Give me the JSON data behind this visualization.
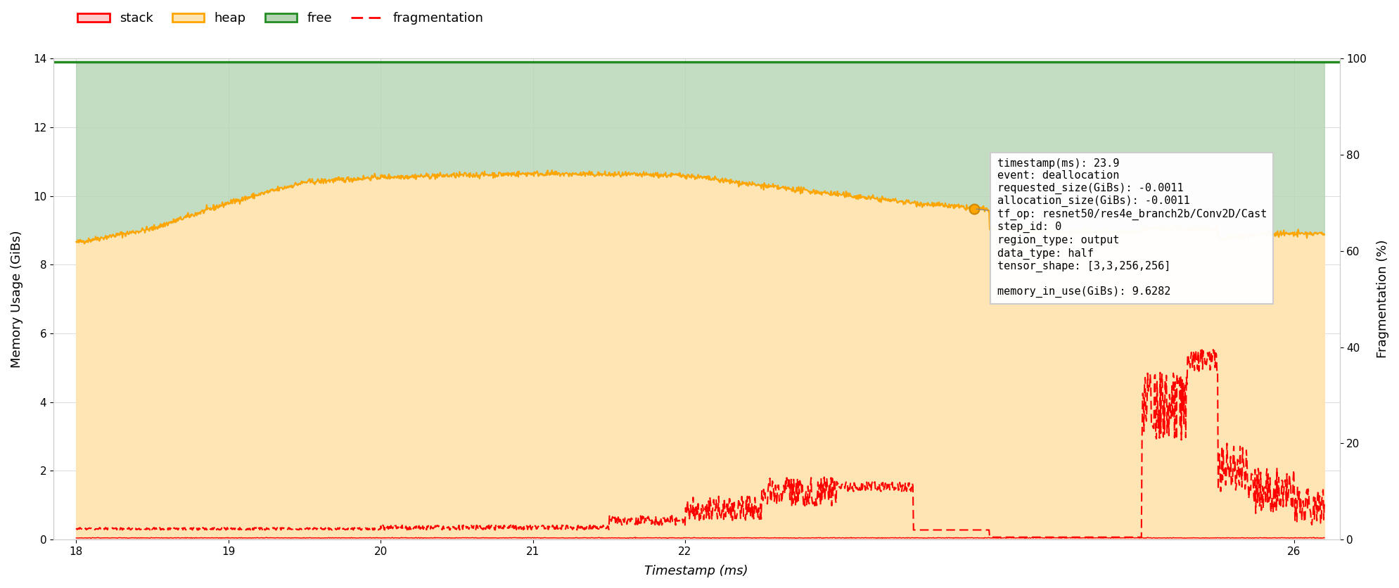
{
  "xlim": [
    17.85,
    26.3
  ],
  "ylim_left": [
    0,
    14
  ],
  "ylim_right": [
    0,
    100
  ],
  "xticks": [
    18,
    19,
    20,
    21,
    22,
    26
  ],
  "yticks_left": [
    0,
    2,
    4,
    6,
    8,
    10,
    12,
    14
  ],
  "yticks_right": [
    0,
    20,
    40,
    60,
    80,
    100
  ],
  "xlabel": "Timestamp (ms)",
  "ylabel_left": "Memory Usage (GiBs)",
  "ylabel_right": "Fragmentation (%)",
  "total_memory_gib": 13.9,
  "stack_color": "#ff0000",
  "stack_fill_color": "#ffcccc",
  "heap_color": "#ffa500",
  "heap_fill_color": "#ffe5b4",
  "free_color": "#228b22",
  "free_fill_color": "#b5d5b5",
  "frag_color": "#ff0000",
  "bg_color": "#ffffff",
  "grid_color": "#dddddd",
  "tooltip_x": 23.9,
  "tooltip_y": 9.6282,
  "tooltip_text": "timestamp(ms): 23.9\nevent: deallocation\nrequested_size(GiBs): -0.0011\nallocation_size(GiBs): -0.0011\ntf_op: resnet50/res4e_branch2b/Conv2D/Cast\nstep_id: 0\nregion_type: output\ndata_type: half\ntensor_shape: [3,3,256,256]\n\nmemory_in_use(GiBs): 9.6282"
}
